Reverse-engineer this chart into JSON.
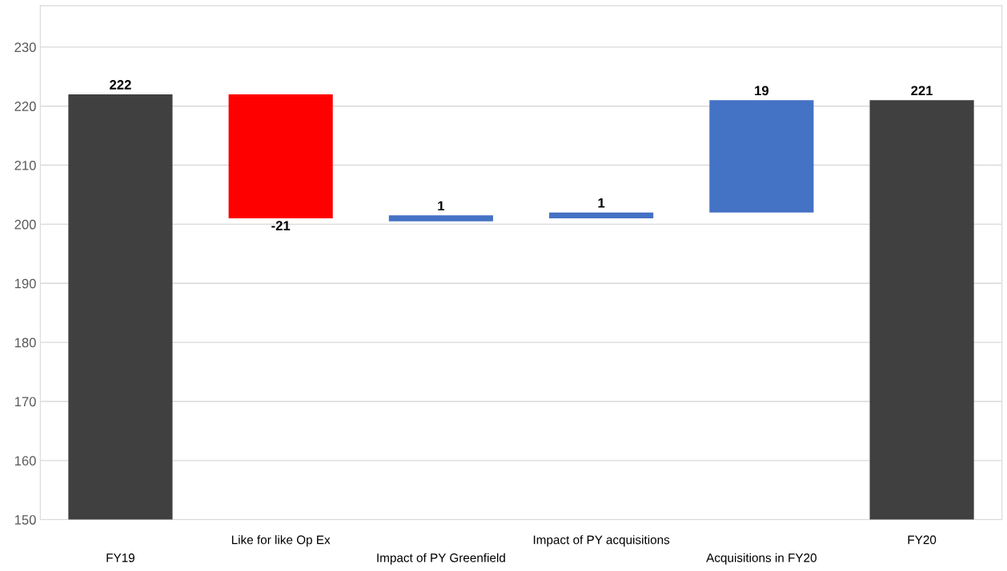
{
  "chart_data": {
    "type": "bar",
    "categories": [
      "FY19",
      "Like for like Op Ex",
      "Impact of PY Greenfield",
      "Impact of PY acquisitions",
      "Acquisitions in FY20",
      "FY20"
    ],
    "values": [
      72,
      -21,
      1,
      1,
      19,
      71
    ],
    "base": [
      150,
      222,
      200.5,
      201,
      202,
      150
    ],
    "colors": [
      "#404040",
      "#ff0000",
      "#4472c4",
      "#4472c4",
      "#4472c4",
      "#404040"
    ],
    "value_labels": [
      "222",
      "-21",
      "1",
      "1",
      "19",
      "221"
    ],
    "ylim": [
      150,
      237
    ],
    "yticks": [
      150,
      160,
      170,
      180,
      190,
      200,
      210,
      220,
      230
    ],
    "grid": "y"
  }
}
